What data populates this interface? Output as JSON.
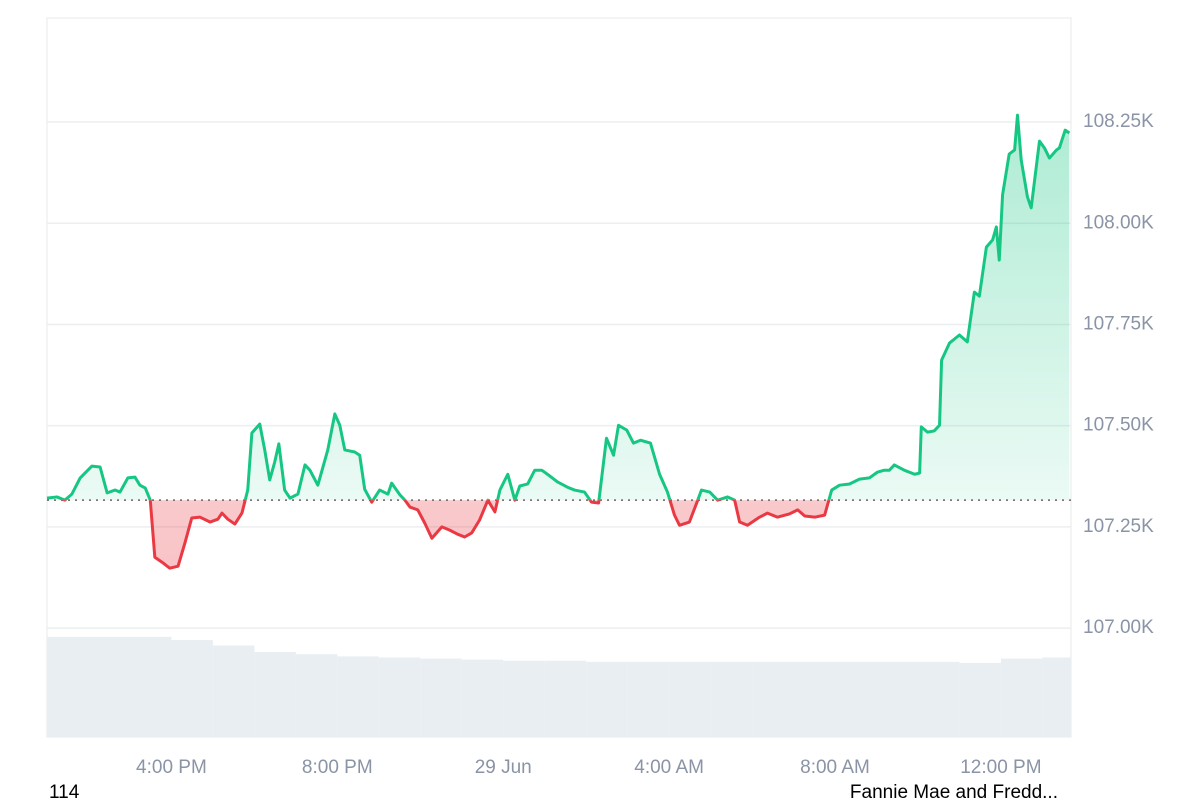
{
  "chart_data": {
    "type": "baseline-line",
    "x": [
      13.0,
      13.24,
      13.43,
      13.6,
      13.8,
      14.08,
      14.28,
      14.45,
      14.64,
      14.76,
      14.95,
      15.12,
      15.24,
      15.37,
      15.49,
      15.6,
      15.77,
      15.96,
      16.16,
      16.33,
      16.49,
      16.69,
      16.93,
      17.12,
      17.22,
      17.36,
      17.53,
      17.7,
      17.84,
      17.94,
      18.13,
      18.25,
      18.37,
      18.49,
      18.59,
      18.73,
      18.86,
      19.05,
      19.22,
      19.34,
      19.53,
      19.77,
      19.94,
      20.06,
      20.18,
      20.42,
      20.54,
      20.66,
      20.83,
      21.02,
      21.22,
      21.31,
      21.51,
      21.63,
      21.75,
      21.94,
      22.11,
      22.28,
      22.52,
      22.71,
      22.9,
      23.07,
      23.24,
      23.43,
      23.63,
      23.8,
      23.92,
      24.11,
      24.28,
      24.4,
      24.59,
      24.76,
      24.93,
      25.12,
      25.31,
      25.55,
      25.72,
      25.96,
      26.13,
      26.3,
      26.49,
      26.66,
      26.78,
      26.98,
      27.14,
      27.31,
      27.55,
      27.77,
      27.96,
      28.13,
      28.25,
      28.49,
      28.69,
      28.78,
      28.98,
      29.17,
      29.41,
      29.58,
      29.7,
      29.89,
      30.18,
      30.37,
      30.61,
      30.9,
      31.1,
      31.27,
      31.51,
      31.75,
      31.92,
      32.11,
      32.35,
      32.59,
      32.83,
      33.02,
      33.19,
      33.31,
      33.43,
      33.67,
      33.92,
      34.04,
      34.08,
      34.23,
      34.39,
      34.52,
      34.57,
      34.76,
      35.0,
      35.19,
      35.36,
      35.48,
      35.65,
      35.8,
      35.89,
      35.96,
      36.04,
      36.2,
      36.33,
      36.4,
      36.49,
      36.64,
      36.73,
      36.93,
      37.05,
      37.17,
      37.34,
      37.41,
      37.55,
      37.65
    ],
    "values": [
      107321,
      107324,
      107316,
      107331,
      107371,
      107400,
      107398,
      107334,
      107341,
      107336,
      107371,
      107373,
      107353,
      107346,
      107316,
      107175,
      107163,
      107148,
      107153,
      107212,
      107272,
      107274,
      107262,
      107269,
      107284,
      107269,
      107257,
      107284,
      107341,
      107482,
      107504,
      107440,
      107366,
      107410,
      107455,
      107341,
      107321,
      107331,
      107403,
      107390,
      107353,
      107440,
      107529,
      107501,
      107440,
      107435,
      107427,
      107343,
      107311,
      107341,
      107331,
      107358,
      107329,
      107316,
      107299,
      107292,
      107259,
      107222,
      107250,
      107242,
      107232,
      107225,
      107235,
      107267,
      107316,
      107287,
      107341,
      107380,
      107316,
      107351,
      107356,
      107390,
      107390,
      107376,
      107361,
      107348,
      107341,
      107336,
      107311,
      107309,
      107469,
      107427,
      107501,
      107489,
      107457,
      107464,
      107457,
      107380,
      107336,
      107279,
      107254,
      107262,
      107316,
      107341,
      107336,
      107316,
      107324,
      107316,
      107262,
      107254,
      107274,
      107284,
      107274,
      107282,
      107292,
      107277,
      107274,
      107279,
      107341,
      107353,
      107356,
      107368,
      107371,
      107385,
      107390,
      107390,
      107403,
      107390,
      107380,
      107383,
      107497,
      107484,
      107487,
      107501,
      107662,
      107704,
      107724,
      107707,
      107830,
      107820,
      107941,
      107959,
      107991,
      107909,
      108070,
      108171,
      108181,
      108267,
      108156,
      108065,
      108038,
      108203,
      108186,
      108161,
      108181,
      108186,
      108230,
      108223
    ],
    "baseline": 107316,
    "colors": {
      "up": "#16c784",
      "down": "#ea3943",
      "volume": "#e9eef2"
    },
    "xlim": [
      13,
      37.69
    ],
    "xticks": [
      {
        "value": 16,
        "label": "4:00 PM"
      },
      {
        "value": 20,
        "label": "8:00 PM"
      },
      {
        "value": 24,
        "label": "29 Jun"
      },
      {
        "value": 28,
        "label": "4:00 AM"
      },
      {
        "value": 32,
        "label": "8:00 AM"
      },
      {
        "value": 36,
        "label": "12:00 PM"
      }
    ],
    "ylim": [
      106731,
      108507
    ],
    "yticks": [
      {
        "value": 107000,
        "label": "107.00K"
      },
      {
        "value": 107250,
        "label": "107.25K"
      },
      {
        "value": 107500,
        "label": "107.50K"
      },
      {
        "value": 107750,
        "label": "107.75K"
      },
      {
        "value": 108000,
        "label": "108.00K"
      },
      {
        "value": 108250,
        "label": "108.25K"
      }
    ],
    "grid": true,
    "volume": {
      "x": [
        13,
        14,
        15,
        16,
        17,
        18,
        19,
        20,
        21,
        22,
        23,
        24,
        25,
        26,
        27,
        28,
        29,
        30,
        31,
        32,
        33,
        34,
        35,
        36,
        37
      ],
      "values": [
        92,
        92,
        92,
        89,
        84,
        78,
        76,
        74,
        73,
        72,
        71,
        70,
        70,
        69,
        69,
        69,
        69,
        69,
        69,
        69,
        69,
        69,
        68,
        72,
        73
      ],
      "ylim": [
        0,
        100
      ]
    }
  },
  "footer": {
    "left": "114",
    "right": "Fannie Mae and Fredd..."
  }
}
